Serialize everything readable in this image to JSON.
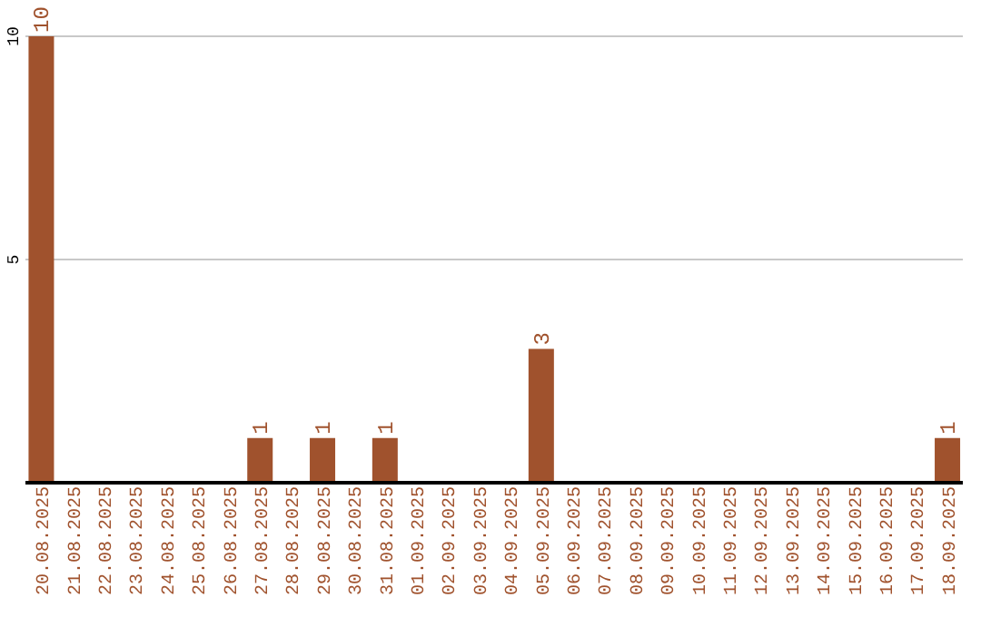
{
  "chart_data": {
    "type": "bar",
    "categories": [
      "20.08.2025",
      "21.08.2025",
      "22.08.2025",
      "23.08.2025",
      "24.08.2025",
      "25.08.2025",
      "26.08.2025",
      "27.08.2025",
      "28.08.2025",
      "29.08.2025",
      "30.08.2025",
      "31.08.2025",
      "01.09.2025",
      "02.09.2025",
      "03.09.2025",
      "04.09.2025",
      "05.09.2025",
      "06.09.2025",
      "07.09.2025",
      "08.09.2025",
      "09.09.2025",
      "10.09.2025",
      "11.09.2025",
      "12.09.2025",
      "13.09.2025",
      "14.09.2025",
      "15.09.2025",
      "16.09.2025",
      "17.09.2025",
      "18.09.2025"
    ],
    "values": [
      10,
      0,
      0,
      0,
      0,
      0,
      0,
      1,
      0,
      1,
      0,
      1,
      0,
      0,
      0,
      0,
      3,
      0,
      0,
      0,
      0,
      0,
      0,
      0,
      0,
      0,
      0,
      0,
      0,
      1
    ],
    "color": "#a0522d",
    "value_labels": [
      "10",
      null,
      null,
      null,
      null,
      null,
      null,
      "1",
      null,
      "1",
      null,
      "1",
      null,
      null,
      null,
      null,
      "3",
      null,
      null,
      null,
      null,
      null,
      null,
      null,
      null,
      null,
      null,
      null,
      null,
      "1"
    ],
    "ylim": [
      0,
      10
    ],
    "yticks": [
      5,
      10
    ],
    "grid": "y"
  }
}
